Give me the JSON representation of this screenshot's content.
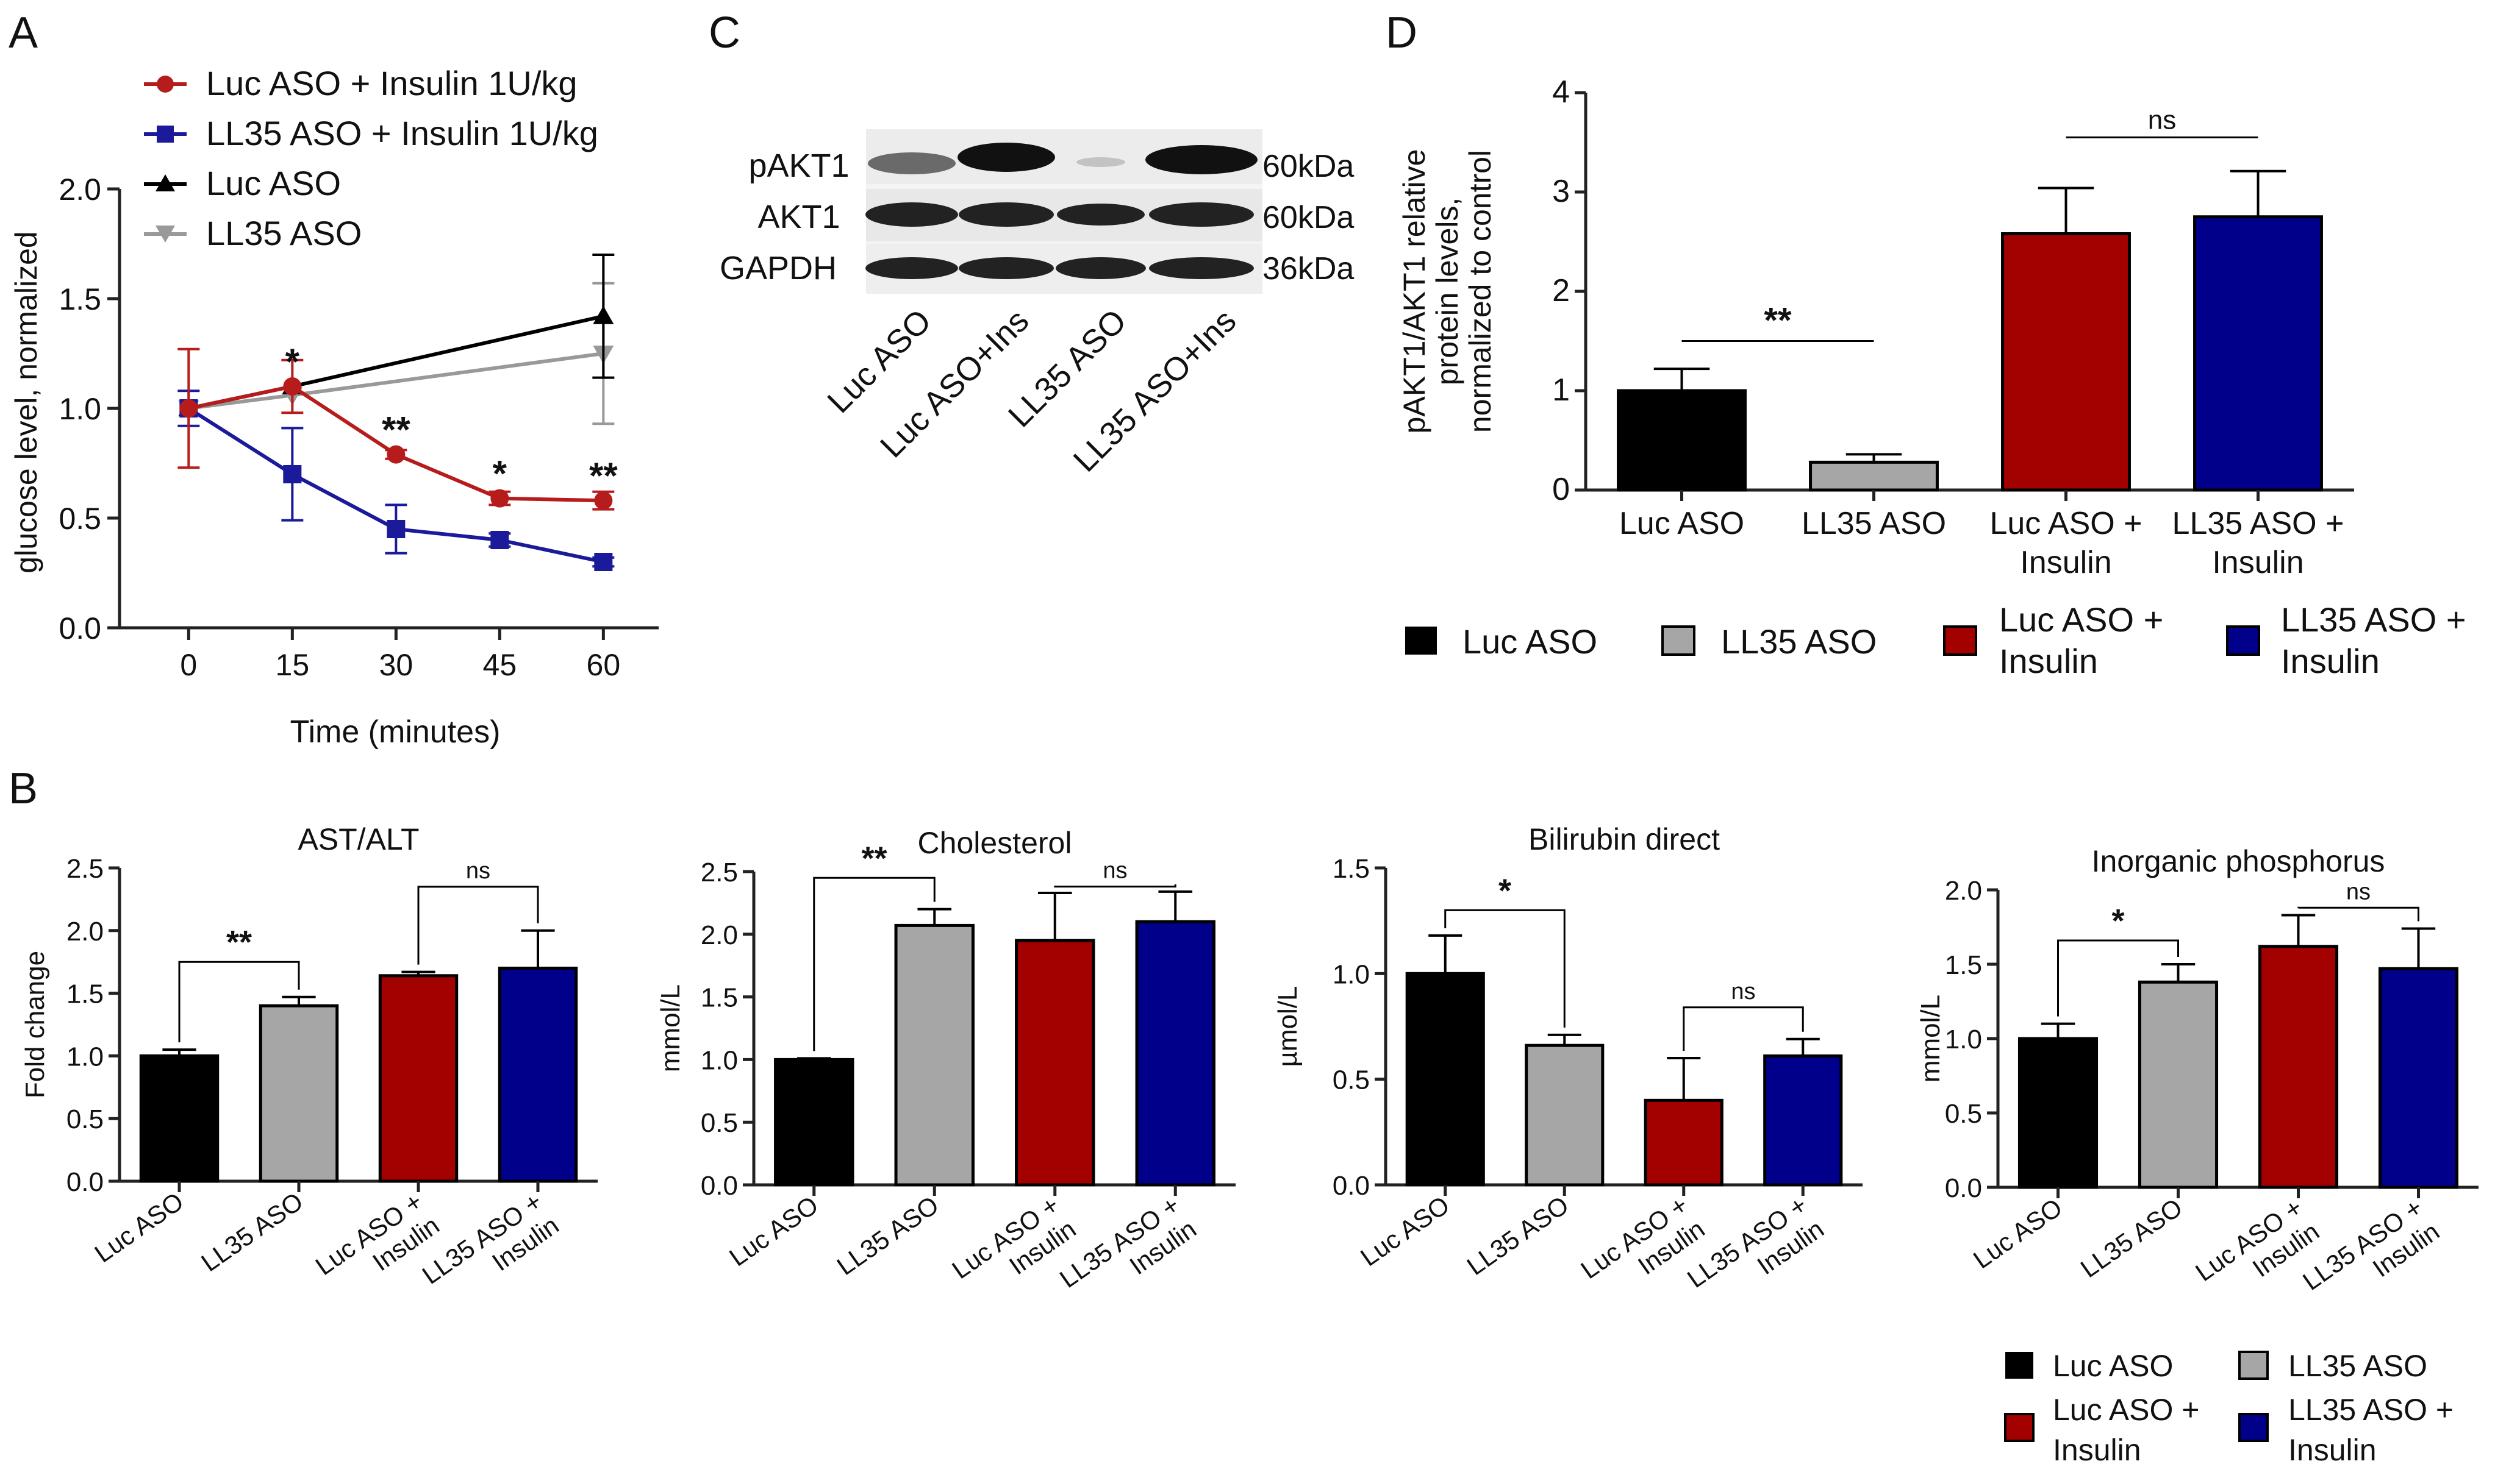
{
  "colors": {
    "black": "#000000",
    "gray": "#a6a6a6",
    "red": "#a30000",
    "blue": "#00008b",
    "red_line": "#b71c1c",
    "blue_line": "#1a1a9a",
    "gray_line": "#999999"
  },
  "panel_labels": {
    "a": "A",
    "b": "B",
    "c": "C",
    "d": "D"
  },
  "legend_bar": {
    "luc": "Luc ASO",
    "ll35": "LL35 ASO",
    "luc_ins_1": "Luc ASO +",
    "luc_ins_2": "Insulin",
    "ll35_ins_1": "LL35 ASO +",
    "ll35_ins_2": "Insulin"
  },
  "blot": {
    "proteins": [
      "pAKT1",
      "AKT1",
      "GAPDH"
    ],
    "sizes": [
      "60kDa",
      "60kDa",
      "36kDa"
    ],
    "lanes": [
      "Luc ASO",
      "Luc ASO+Ins",
      "LL35 ASO",
      "LL35 ASO+Ins"
    ]
  },
  "chart_data": [
    {
      "panel": "A",
      "type": "line",
      "xlabel": "Time (minutes)",
      "ylabel": "glucose level, normalized",
      "x": [
        0,
        15,
        30,
        45,
        60
      ],
      "xlim": [
        -10,
        68
      ],
      "ylim": [
        0,
        2
      ],
      "xticks": [
        "0",
        "15",
        "30",
        "45",
        "60"
      ],
      "yticks": [
        "0.0",
        "0.5",
        "1.0",
        "1.5",
        "2.0"
      ],
      "series": [
        {
          "name": "Luc ASO + Insulin 1U/kg",
          "color": "#b71c1c",
          "marker": "circle",
          "x": [
            0,
            15,
            30,
            45,
            60
          ],
          "values": [
            1.0,
            1.1,
            0.79,
            0.59,
            0.58
          ],
          "err": [
            0.27,
            0.12,
            0.02,
            0.03,
            0.04
          ]
        },
        {
          "name": "LL35 ASO + Insulin 1U/kg",
          "color": "#1a1a9a",
          "marker": "square",
          "x": [
            0,
            15,
            30,
            45,
            60
          ],
          "values": [
            1.0,
            0.7,
            0.45,
            0.4,
            0.3
          ],
          "err": [
            0.08,
            0.21,
            0.11,
            0.03,
            0.02
          ]
        },
        {
          "name": "Luc ASO",
          "color": "#000000",
          "marker": "triangle-up",
          "x": [
            0,
            15,
            60
          ],
          "values": [
            1.0,
            1.1,
            1.42
          ],
          "err": [
            0,
            0,
            0.28
          ]
        },
        {
          "name": "LL35 ASO",
          "color": "#999999",
          "marker": "triangle-down",
          "x": [
            0,
            15,
            60
          ],
          "values": [
            1.0,
            1.06,
            1.25
          ],
          "err": [
            0,
            0,
            0.32
          ]
        }
      ],
      "annotations": [
        {
          "x": 15,
          "text": "*"
        },
        {
          "x": 30,
          "text": "**"
        },
        {
          "x": 45,
          "text": "*"
        },
        {
          "x": 60,
          "text": "**"
        }
      ]
    },
    {
      "panel": "B1",
      "type": "bar",
      "title": "AST/ALT",
      "ylabel": "Fold change",
      "ylim": [
        0,
        2.5
      ],
      "yticks": [
        "0.0",
        "0.5",
        "1.0",
        "1.5",
        "2.0",
        "2.5"
      ],
      "categories": [
        "Luc ASO",
        "LL35 ASO",
        "Luc ASO + Insulin",
        "LL35 ASO + Insulin"
      ],
      "values": [
        1.0,
        1.4,
        1.64,
        1.7
      ],
      "err": [
        0.05,
        0.07,
        0.03,
        0.3
      ],
      "sig": [
        {
          "a": 0,
          "b": 1,
          "text": "**",
          "y": 1.75
        },
        {
          "a": 2,
          "b": 3,
          "text": "ns",
          "y": 2.35
        }
      ]
    },
    {
      "panel": "B2",
      "type": "bar",
      "title": "Cholesterol",
      "ylabel": "mmol/L",
      "ylim": [
        0,
        2.5
      ],
      "yticks": [
        "0.0",
        "0.5",
        "1.0",
        "1.5",
        "2.0",
        "2.5"
      ],
      "categories": [
        "Luc ASO",
        "LL35 ASO",
        "Luc ASO + Insulin",
        "LL35 ASO + Insulin"
      ],
      "values": [
        1.0,
        2.07,
        1.95,
        2.1
      ],
      "err": [
        0.01,
        0.13,
        0.38,
        0.24
      ],
      "sig": [
        {
          "a": 0,
          "b": 1,
          "text": "**",
          "y": 2.45
        },
        {
          "a": 2,
          "b": 3,
          "text": "ns",
          "y": 2.38
        }
      ]
    },
    {
      "panel": "B3",
      "type": "bar",
      "title": "Bilirubin direct",
      "ylabel": "µmol/L",
      "ylim": [
        0,
        1.5
      ],
      "yticks": [
        "0.0",
        "0.5",
        "1.0",
        "1.5"
      ],
      "categories": [
        "Luc ASO",
        "LL35 ASO",
        "Luc ASO + Insulin",
        "LL35 ASO + Insulin"
      ],
      "values": [
        1.0,
        0.66,
        0.4,
        0.61
      ],
      "err": [
        0.18,
        0.05,
        0.2,
        0.08
      ],
      "sig": [
        {
          "a": 0,
          "b": 1,
          "text": "*",
          "y": 1.3
        },
        {
          "a": 2,
          "b": 3,
          "text": "ns",
          "y": 0.84
        }
      ]
    },
    {
      "panel": "B4",
      "type": "bar",
      "title": "Inorganic phosphorus",
      "ylabel": "mmol/L",
      "ylim": [
        0,
        2.0
      ],
      "yticks": [
        "0.0",
        "0.5",
        "1.0",
        "1.5",
        "2.0"
      ],
      "categories": [
        "Luc ASO",
        "LL35 ASO",
        "Luc ASO + Insulin",
        "LL35 ASO + Insulin"
      ],
      "values": [
        1.0,
        1.38,
        1.62,
        1.47
      ],
      "err": [
        0.1,
        0.12,
        0.21,
        0.27
      ],
      "sig": [
        {
          "a": 0,
          "b": 1,
          "text": "*",
          "y": 1.66
        },
        {
          "a": 2,
          "b": 3,
          "text": "ns",
          "y": 1.88
        }
      ]
    },
    {
      "panel": "D",
      "type": "bar",
      "title": "",
      "ylabel": "pAKT1/AKT1 relative protein levels, normalized to control",
      "ylim": [
        0,
        4
      ],
      "yticks": [
        "0",
        "1",
        "2",
        "3",
        "4"
      ],
      "categories": [
        "Luc ASO",
        "LL35 ASO",
        "Luc ASO + Insulin",
        "LL35 ASO + Insulin"
      ],
      "values": [
        1.0,
        0.28,
        2.58,
        2.75
      ],
      "err": [
        0.22,
        0.08,
        0.46,
        0.46
      ],
      "sig": [
        {
          "a": 0,
          "b": 1,
          "text": "**",
          "y": 1.5,
          "bracket": "line"
        },
        {
          "a": 2,
          "b": 3,
          "text": "ns",
          "y": 3.55,
          "bracket": "line"
        }
      ]
    }
  ]
}
